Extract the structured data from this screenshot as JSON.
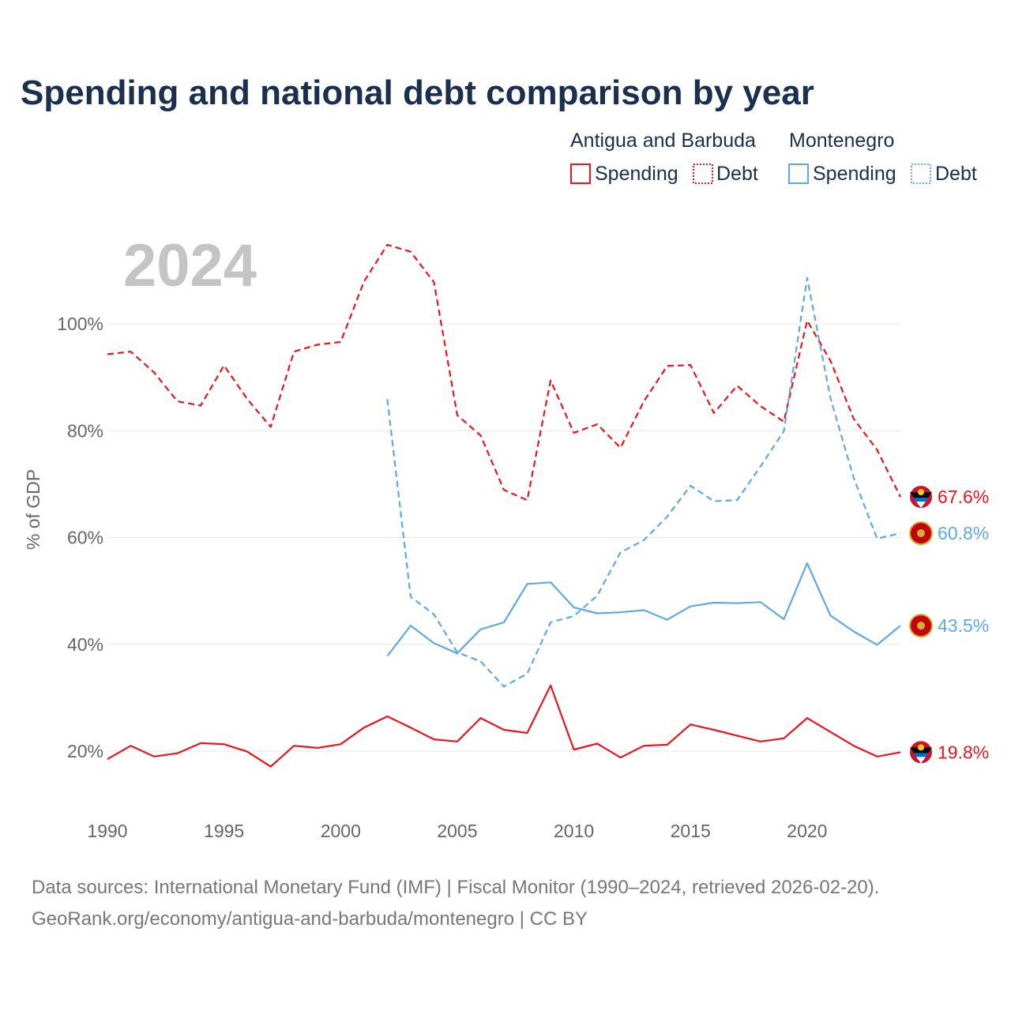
{
  "title": "Spending and national debt comparison by year",
  "year_label": "2024",
  "legend": {
    "groups": [
      {
        "name": "Antigua and Barbuda",
        "color": "#e8161c",
        "items": [
          "Spending",
          "Debt"
        ]
      },
      {
        "name": "Montenegro",
        "color": "#5fa8e8",
        "items": [
          "Spending",
          "Debt"
        ]
      }
    ]
  },
  "sources": {
    "line1": "Data sources: International Monetary Fund (IMF) | Fiscal Monitor (1990–2024, retrieved 2026-02-20).",
    "line2": "GeoRank.org/economy/antigua-and-barbuda/montenegro | CC BY"
  },
  "chart_data": {
    "type": "line",
    "title": "Spending and national debt comparison by year",
    "xlabel": "",
    "ylabel": "% of GDP",
    "xlim": [
      1990,
      2024
    ],
    "ylim": [
      10,
      115
    ],
    "x_ticks": [
      1990,
      1995,
      2000,
      2005,
      2010,
      2015,
      2020
    ],
    "y_ticks": [
      20,
      40,
      60,
      80,
      100
    ],
    "y_tick_labels": [
      "20%",
      "40%",
      "60%",
      "80%",
      "100%"
    ],
    "grid": true,
    "legend_position": "top-right",
    "series": [
      {
        "name": "Antigua and Barbuda Debt",
        "country": "Antigua and Barbuda",
        "metric": "Debt",
        "color": "#e8161c",
        "dash": "dashed",
        "x": [
          1990,
          1991,
          1992,
          1993,
          1994,
          1995,
          1996,
          1997,
          1998,
          1999,
          2000,
          2001,
          2002,
          2003,
          2004,
          2005,
          2006,
          2007,
          2008,
          2009,
          2010,
          2011,
          2012,
          2013,
          2014,
          2015,
          2016,
          2017,
          2018,
          2019,
          2020,
          2021,
          2022,
          2023,
          2024
        ],
        "values": [
          94.3,
          94.8,
          90.9,
          85.5,
          84.7,
          92.2,
          85.9,
          80.7,
          94.8,
          96.1,
          96.6,
          107.9,
          114.8,
          113.5,
          107.8,
          82.9,
          79.1,
          68.9,
          67.0,
          89.4,
          79.6,
          81.2,
          76.8,
          85.5,
          92.1,
          92.3,
          83.3,
          88.4,
          84.6,
          81.7,
          100.6,
          93.1,
          82.2,
          76.4,
          67.6
        ],
        "end_label": "67.6%"
      },
      {
        "name": "Montenegro Debt",
        "country": "Montenegro",
        "metric": "Debt",
        "color": "#5fa8e8",
        "dash": "dashed",
        "x": [
          2002,
          2003,
          2004,
          2005,
          2006,
          2007,
          2008,
          2009,
          2010,
          2011,
          2012,
          2013,
          2014,
          2015,
          2016,
          2017,
          2018,
          2019,
          2020,
          2021,
          2022,
          2023,
          2024
        ],
        "values": [
          85.9,
          48.9,
          45.6,
          38.5,
          36.8,
          32.1,
          34.5,
          44.1,
          45.3,
          49.1,
          57.2,
          59.5,
          63.9,
          69.7,
          66.8,
          67.0,
          73.3,
          79.9,
          108.6,
          86.1,
          71.1,
          59.8,
          60.8
        ],
        "end_label": "60.8%"
      },
      {
        "name": "Montenegro Spending",
        "country": "Montenegro",
        "metric": "Spending",
        "color": "#5fa8e8",
        "dash": "solid",
        "x": [
          2002,
          2003,
          2004,
          2005,
          2006,
          2007,
          2008,
          2009,
          2010,
          2011,
          2012,
          2013,
          2014,
          2015,
          2016,
          2017,
          2018,
          2019,
          2020,
          2021,
          2022,
          2023,
          2024
        ],
        "values": [
          37.8,
          43.5,
          40.2,
          38.3,
          42.8,
          44.1,
          51.3,
          51.6,
          46.9,
          45.8,
          46.0,
          46.4,
          44.6,
          47.1,
          47.8,
          47.7,
          47.9,
          44.7,
          55.2,
          45.4,
          42.4,
          39.9,
          43.5
        ],
        "end_label": "43.5%"
      },
      {
        "name": "Antigua and Barbuda Spending",
        "country": "Antigua and Barbuda",
        "metric": "Spending",
        "color": "#e8161c",
        "dash": "solid",
        "x": [
          1990,
          1991,
          1992,
          1993,
          1994,
          1995,
          1996,
          1997,
          1998,
          1999,
          2000,
          2001,
          2002,
          2003,
          2004,
          2005,
          2006,
          2007,
          2008,
          2009,
          2010,
          2011,
          2012,
          2013,
          2014,
          2015,
          2016,
          2017,
          2018,
          2019,
          2020,
          2021,
          2022,
          2023,
          2024
        ],
        "values": [
          18.5,
          21.0,
          19.0,
          19.6,
          21.5,
          21.3,
          19.9,
          17.1,
          21.0,
          20.6,
          21.3,
          24.4,
          26.5,
          24.4,
          22.2,
          21.8,
          26.2,
          24.0,
          23.4,
          32.3,
          20.3,
          21.4,
          18.8,
          21.0,
          21.2,
          25.0,
          24.0,
          22.9,
          21.8,
          22.4,
          26.2,
          23.6,
          21.0,
          19.0,
          19.8
        ],
        "end_label": "19.8%"
      }
    ]
  }
}
